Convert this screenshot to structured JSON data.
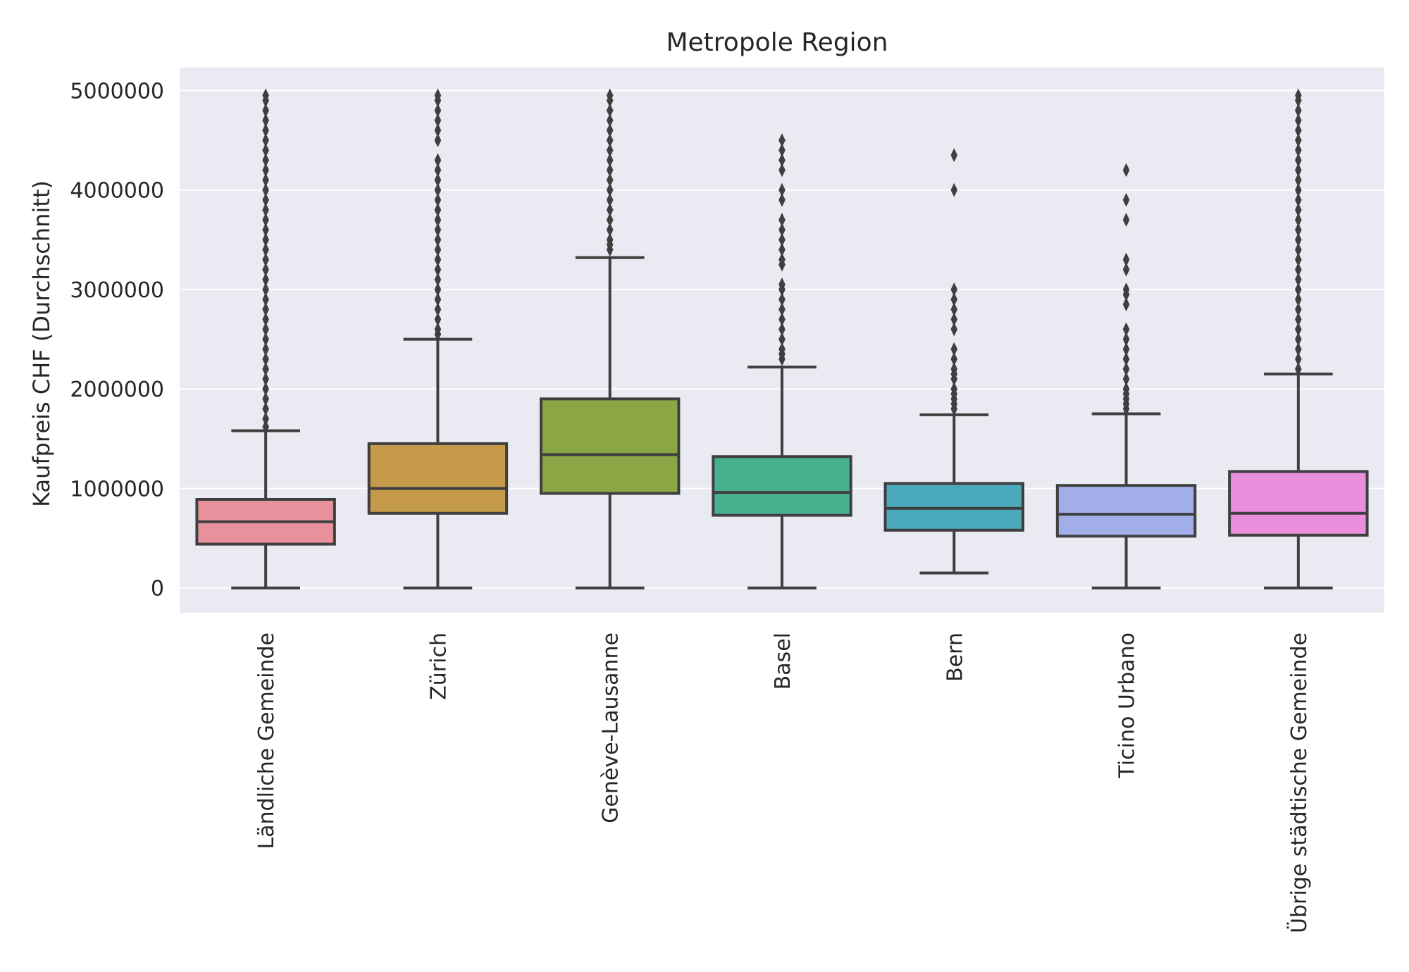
{
  "chart_data": {
    "type": "box",
    "title": "Metropole Region",
    "xlabel": "",
    "ylabel": "Kaufpreis CHF (Durchschnitt)",
    "ylim": [
      -250000,
      5230000
    ],
    "yticks": [
      0,
      1000000,
      2000000,
      3000000,
      4000000,
      5000000
    ],
    "ytick_labels": [
      "0",
      "1000000",
      "2000000",
      "3000000",
      "4000000",
      "5000000"
    ],
    "grid": true,
    "legend": "none",
    "categories": [
      "Ländliche Gemeinde",
      "Zürich",
      "Genève-Lausanne",
      "Basel",
      "Bern",
      "Ticino Urbano",
      "Übrige städtische Gemeinde"
    ],
    "series": [
      {
        "whisker_low": 0,
        "q1": 440000,
        "median": 665000,
        "q3": 890000,
        "whisker_high": 1580000,
        "outliers": [
          1620000,
          1700000,
          1800000,
          1900000,
          2000000,
          2100000,
          2200000,
          2300000,
          2400000,
          2500000,
          2600000,
          2700000,
          2800000,
          2900000,
          3000000,
          3100000,
          3200000,
          3300000,
          3400000,
          3500000,
          3600000,
          3700000,
          3800000,
          3900000,
          4000000,
          4100000,
          4200000,
          4300000,
          4400000,
          4500000,
          4600000,
          4700000,
          4800000,
          4900000,
          4950000
        ]
      },
      {
        "whisker_low": 0,
        "q1": 750000,
        "median": 1000000,
        "q3": 1450000,
        "whisker_high": 2500000,
        "outliers": [
          2550000,
          2600000,
          2700000,
          2800000,
          2900000,
          3000000,
          3100000,
          3200000,
          3300000,
          3400000,
          3500000,
          3600000,
          3700000,
          3800000,
          3900000,
          4000000,
          4100000,
          4200000,
          4300000,
          4500000,
          4600000,
          4700000,
          4800000,
          4900000,
          4950000
        ]
      },
      {
        "whisker_low": 0,
        "q1": 950000,
        "median": 1340000,
        "q3": 1900000,
        "whisker_high": 3320000,
        "outliers": [
          3400000,
          3450000,
          3500000,
          3600000,
          3700000,
          3800000,
          3900000,
          4000000,
          4100000,
          4200000,
          4300000,
          4400000,
          4500000,
          4600000,
          4700000,
          4800000,
          4900000,
          4950000
        ]
      },
      {
        "whisker_low": 0,
        "q1": 730000,
        "median": 960000,
        "q3": 1320000,
        "whisker_high": 2220000,
        "outliers": [
          2300000,
          2350000,
          2400000,
          2500000,
          2600000,
          2700000,
          2800000,
          2900000,
          3000000,
          3050000,
          3250000,
          3300000,
          3400000,
          3500000,
          3600000,
          3700000,
          3900000,
          4000000,
          4200000,
          4300000,
          4400000,
          4500000
        ]
      },
      {
        "whisker_low": 150000,
        "q1": 580000,
        "median": 800000,
        "q3": 1050000,
        "whisker_high": 1740000,
        "outliers": [
          1800000,
          1850000,
          1900000,
          1950000,
          2000000,
          2100000,
          2150000,
          2200000,
          2300000,
          2400000,
          2600000,
          2700000,
          2800000,
          2900000,
          3000000,
          4000000,
          4350000
        ]
      },
      {
        "whisker_low": 0,
        "q1": 520000,
        "median": 740000,
        "q3": 1030000,
        "whisker_high": 1750000,
        "outliers": [
          1800000,
          1850000,
          1900000,
          1950000,
          2000000,
          2100000,
          2200000,
          2300000,
          2400000,
          2500000,
          2600000,
          2850000,
          2950000,
          3000000,
          3200000,
          3300000,
          3700000,
          3900000,
          4200000
        ]
      },
      {
        "whisker_low": 0,
        "q1": 530000,
        "median": 750000,
        "q3": 1170000,
        "whisker_high": 2150000,
        "outliers": [
          2200000,
          2300000,
          2400000,
          2500000,
          2600000,
          2700000,
          2800000,
          2900000,
          3000000,
          3100000,
          3200000,
          3300000,
          3400000,
          3500000,
          3600000,
          3700000,
          3800000,
          3900000,
          4000000,
          4100000,
          4200000,
          4300000,
          4400000,
          4500000,
          4600000,
          4700000,
          4800000,
          4900000,
          4950000
        ]
      }
    ],
    "colors": [
      "#e8919c",
      "#c59a4b",
      "#8ba745",
      "#47b08e",
      "#4aa9bb",
      "#a1aeea",
      "#ea8fdc"
    ],
    "line_color": "#3f3f3f",
    "plot_background": "#eaeaf2",
    "grid_color": "#ffffff"
  }
}
